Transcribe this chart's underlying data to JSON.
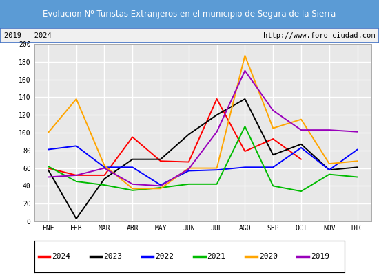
{
  "title": "Evolucion Nº Turistas Extranjeros en el municipio de Segura de la Sierra",
  "subtitle_left": "2019 - 2024",
  "subtitle_right": "http://www.foro-ciudad.com",
  "months": [
    "ENE",
    "FEB",
    "MAR",
    "ABR",
    "MAY",
    "JUN",
    "JUL",
    "AGO",
    "SEP",
    "OCT",
    "NOV",
    "DIC"
  ],
  "series": {
    "2024": [
      60,
      52,
      52,
      95,
      68,
      67,
      138,
      79,
      93,
      70,
      null,
      null
    ],
    "2023": [
      58,
      3,
      48,
      70,
      70,
      98,
      120,
      138,
      75,
      87,
      58,
      61
    ],
    "2022": [
      81,
      85,
      61,
      61,
      41,
      57,
      58,
      61,
      61,
      83,
      58,
      81
    ],
    "2021": [
      62,
      45,
      41,
      35,
      38,
      42,
      42,
      107,
      40,
      34,
      53,
      50
    ],
    "2020": [
      100,
      138,
      63,
      37,
      37,
      60,
      60,
      187,
      105,
      115,
      65,
      68
    ],
    "2019": [
      50,
      52,
      60,
      42,
      40,
      59,
      101,
      170,
      125,
      103,
      103,
      101
    ]
  },
  "colors": {
    "2024": "#ff0000",
    "2023": "#000000",
    "2022": "#0000ff",
    "2021": "#00bb00",
    "2020": "#ffa500",
    "2019": "#9900bb"
  },
  "ylim": [
    0,
    200
  ],
  "yticks": [
    0,
    20,
    40,
    60,
    80,
    100,
    120,
    140,
    160,
    180,
    200
  ],
  "title_bg_color": "#5b9bd5",
  "title_color": "#ffffff",
  "plot_bg_color": "#e8e8e8",
  "grid_color": "#ffffff",
  "subtitle_bg": "#f0f0f0",
  "border_color": "#4472c4"
}
